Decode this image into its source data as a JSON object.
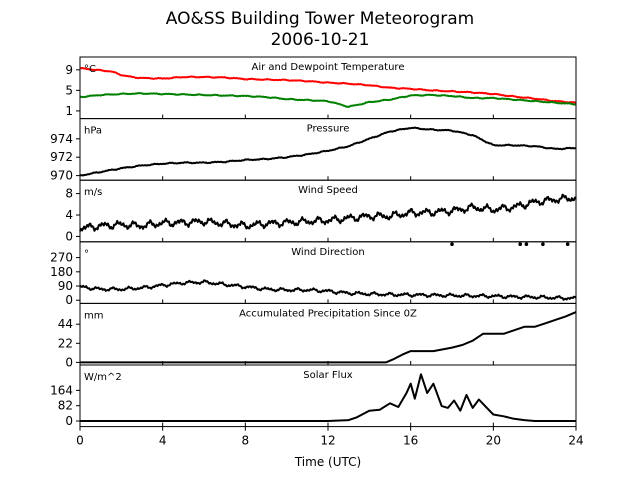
{
  "chart_data": {
    "type": "line",
    "title": "AO&SS Building Tower Meteorogram",
    "subtitle": "2006-10-21",
    "xlabel": "Time (UTC)",
    "xlim": [
      0,
      24
    ],
    "x_ticks": [
      0,
      4,
      8,
      12,
      16,
      20,
      24
    ],
    "panels": [
      {
        "title": "Air and Dewpoint Temperature",
        "unit": "°C",
        "ylim": [
          -0.5,
          11.5
        ],
        "y_ticks": [
          1,
          5,
          9
        ],
        "series": [
          {
            "color": "#ff0000",
            "x": [
              0,
              0.5,
              1,
              1.5,
              2,
              2.5,
              3,
              4,
              5,
              6,
              7,
              8,
              9,
              10,
              11,
              12,
              13,
              14,
              15,
              16,
              17,
              18,
              19,
              20,
              21,
              22,
              23,
              24
            ],
            "y": [
              9.3,
              9.1,
              8.9,
              8.7,
              8.0,
              7.6,
              7.4,
              7.3,
              7.6,
              7.6,
              7.5,
              7.2,
              7.1,
              7.0,
              6.8,
              6.5,
              6.3,
              6.0,
              5.5,
              5.3,
              5.0,
              4.8,
              4.6,
              4.3,
              3.8,
              3.4,
              2.9,
              2.6
            ]
          },
          {
            "color": "#008000",
            "x": [
              0,
              1,
              2,
              3,
              4,
              5,
              6,
              7,
              8,
              9,
              10,
              11,
              12,
              13,
              14,
              15,
              16,
              17,
              18,
              19,
              20,
              21,
              22,
              23,
              24
            ],
            "y": [
              3.7,
              4.1,
              4.3,
              4.4,
              4.3,
              4.2,
              4.1,
              4.0,
              3.9,
              3.7,
              3.3,
              3.1,
              2.9,
              1.8,
              2.7,
              3.2,
              4.0,
              4.1,
              3.9,
              3.5,
              3.5,
              3.2,
              2.9,
              2.6,
              2.3
            ]
          }
        ]
      },
      {
        "title": "Pressure",
        "unit": "hPa",
        "ylim": [
          969.5,
          976.2
        ],
        "y_ticks": [
          970,
          972,
          974
        ],
        "series": [
          {
            "color": "#000000",
            "x": [
              0,
              1,
              2,
              3,
              4,
              5,
              6,
              7,
              8,
              9,
              10,
              11,
              12,
              13,
              14,
              15,
              16,
              17,
              18,
              19,
              20,
              21,
              22,
              23,
              24
            ],
            "y": [
              970.0,
              970.4,
              970.8,
              971.1,
              971.3,
              971.4,
              971.4,
              971.5,
              971.7,
              971.8,
              972.0,
              972.3,
              972.7,
              973.2,
              974.0,
              974.8,
              975.2,
              975.0,
              974.9,
              974.4,
              973.3,
              973.3,
              973.2,
              972.9,
              973.0
            ]
          }
        ]
      },
      {
        "title": "Wind Speed",
        "unit": "m/s",
        "ylim": [
          -1,
          10.5
        ],
        "y_ticks": [
          0,
          4,
          8
        ],
        "series": [
          {
            "color": "#000000",
            "x": [
              0,
              1,
              2,
              3,
              4,
              5,
              6,
              7,
              8,
              9,
              10,
              11,
              12,
              13,
              14,
              15,
              16,
              17,
              18,
              19,
              20,
              21,
              22,
              23,
              24
            ],
            "y": [
              1.5,
              2.0,
              2.2,
              2.0,
              2.5,
              2.6,
              2.8,
              2.4,
              2.0,
              2.4,
              2.6,
              2.8,
              3.0,
              3.4,
              3.8,
              3.8,
              4.4,
              4.5,
              4.8,
              5.4,
              5.0,
              5.5,
              6.4,
              6.9,
              7.2
            ]
          }
        ]
      },
      {
        "title": "Wind Direction",
        "unit": "°",
        "ylim": [
          -20,
          370
        ],
        "y_ticks": [
          0,
          90,
          180,
          270
        ],
        "series": [
          {
            "color": "#000000",
            "x": [
              0,
              1,
              2,
              3,
              4,
              5,
              6,
              7,
              8,
              9,
              10,
              11,
              12,
              13,
              14,
              15,
              16,
              17,
              18,
              19,
              20,
              21,
              22,
              23,
              24
            ],
            "y": [
              85,
              70,
              70,
              78,
              95,
              110,
              115,
              100,
              85,
              70,
              65,
              65,
              58,
              45,
              40,
              36,
              34,
              32,
              30,
              28,
              26,
              22,
              20,
              15,
              12
            ]
          }
        ],
        "scatter": {
          "x": [
            18.0,
            21.3,
            21.6,
            22.4,
            23.6
          ],
          "y": [
            355,
            355,
            355,
            355,
            355
          ]
        }
      },
      {
        "title": "Accumulated Precipitation Since 0Z",
        "unit": "mm",
        "ylim": [
          -3,
          68
        ],
        "y_ticks": [
          0,
          22,
          44
        ],
        "series": [
          {
            "color": "#000000",
            "x": [
              0,
              14.8,
              15.2,
              15.6,
              16.0,
              17.1,
              18.0,
              18.5,
              19.0,
              19.5,
              20.5,
              21.0,
              21.5,
              22.0,
              22.5,
              23.0,
              23.5,
              24.0
            ],
            "y": [
              0,
              0,
              4,
              9,
              13,
              13,
              17,
              20,
              25,
              33,
              33,
              37,
              41,
              41,
              45,
              49,
              53,
              58
            ]
          }
        ]
      },
      {
        "title": "Solar Flux",
        "unit": "W/m^2",
        "ylim": [
          -30,
          300
        ],
        "y_ticks": [
          0,
          82,
          164
        ],
        "series": [
          {
            "color": "#000000",
            "x": [
              0,
              12.0,
              13.0,
              13.4,
              14.0,
              14.5,
              15.0,
              15.4,
              15.8,
              16.0,
              16.2,
              16.5,
              16.8,
              17.1,
              17.5,
              17.8,
              18.1,
              18.4,
              18.7,
              19.0,
              19.3,
              19.6,
              20.0,
              20.5,
              21.0,
              21.5,
              22.0,
              24
            ],
            "y": [
              0,
              0,
              5,
              20,
              55,
              60,
              95,
              75,
              150,
              200,
              120,
              250,
              150,
              200,
              80,
              70,
              110,
              55,
              140,
              70,
              115,
              80,
              35,
              25,
              12,
              5,
              0,
              0
            ]
          }
        ]
      }
    ]
  }
}
